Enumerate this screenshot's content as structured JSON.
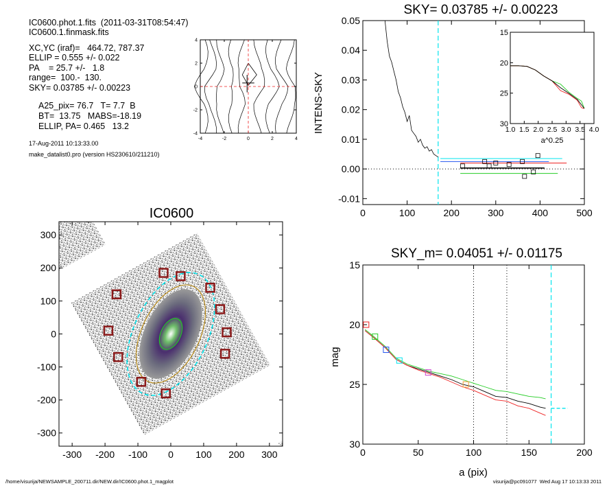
{
  "header": {
    "line1": "IC0600.phot.1.fits  (2011-03-31T08:54:47)",
    "line2": "IC0600.1.finmask.fits"
  },
  "params": {
    "xc": "XC,YC (iraf)=   464.72, 787.37",
    "ellip": "ELLIP = 0.555 +/- 0.022",
    "pa": "PA    = 25.7 +/-   1.8",
    "range": "range=  100.-  130.",
    "sky": "SKY= 0.03785 +/- 0.00223"
  },
  "params2": {
    "a25": "A25_pix= 76.7   T= 7.7  B",
    "bt": "BT=  13.75   MABS=-18.19",
    "ellip_pa": "ELLIP, PA= 0.465   13.2"
  },
  "meta": {
    "date": "17-Aug-2011 10:13:33.00",
    "program": "make_datalist0.pro (version HS230610/211210)"
  },
  "footer": {
    "path": "/home/visurija/NEWSAMPLE_200711.dir/NEW.dir/IC0600.phot.1_magplot",
    "user": "visurija@pc091077  Wed Aug 17 10:13:33 2011"
  },
  "colors": {
    "cyan": "#00e5ee",
    "red": "#ee2222",
    "green": "#22cc22",
    "blue": "#2255ee",
    "magenta": "#cc44cc",
    "orange": "#ee9933",
    "darkred": "#8b1a1a",
    "olive": "#b8860b"
  },
  "chart_data": [
    {
      "type": "line",
      "panel": "small-contour",
      "xlim": [
        -4,
        4
      ],
      "ylim": [
        -4,
        4
      ],
      "xticks": [
        -4,
        -2,
        0,
        2,
        4
      ],
      "yticks": [
        -4,
        -2,
        0,
        2,
        4
      ]
    },
    {
      "type": "line",
      "panel": "sky-profile",
      "title": "SKY= 0.03785 +/- 0.00223",
      "ylabel": "INTENS-SKY",
      "xlim": [
        0,
        500
      ],
      "ylim": [
        -0.012,
        0.05
      ],
      "xticks": [
        0,
        100,
        200,
        300,
        400,
        500
      ],
      "yticks": [
        -0.01,
        0.0,
        0.01,
        0.02,
        0.03,
        0.04,
        0.05
      ],
      "ytick_labels": [
        "-0.01",
        "0.00",
        "0.01",
        "0.02",
        "0.03",
        "0.04",
        "0.05"
      ],
      "sky_vline": 170,
      "profile": [
        [
          50,
          0.05
        ],
        [
          55,
          0.043
        ],
        [
          60,
          0.038
        ],
        [
          65,
          0.036
        ],
        [
          70,
          0.033
        ],
        [
          75,
          0.03
        ],
        [
          80,
          0.026
        ],
        [
          85,
          0.024
        ],
        [
          90,
          0.021
        ],
        [
          95,
          0.019
        ],
        [
          100,
          0.016
        ],
        [
          105,
          0.018
        ],
        [
          110,
          0.013
        ],
        [
          115,
          0.012
        ],
        [
          120,
          0.011
        ],
        [
          125,
          0.009
        ],
        [
          130,
          0.01
        ],
        [
          135,
          0.008
        ],
        [
          140,
          0.007
        ],
        [
          145,
          0.0075
        ],
        [
          150,
          0.006
        ],
        [
          155,
          0.0065
        ],
        [
          160,
          0.005
        ],
        [
          165,
          0.0045
        ],
        [
          170,
          0.004
        ]
      ],
      "sky_levels": [
        {
          "name": "black",
          "x": [
            220,
            410
          ],
          "y": 0.0003
        },
        {
          "name": "green",
          "x": [
            220,
            440
          ],
          "y": -0.0015
        },
        {
          "name": "blue",
          "x": [
            175,
            420
          ],
          "y": 0.0025
        },
        {
          "name": "cyan",
          "x": [
            175,
            450
          ],
          "y": 0.0035
        },
        {
          "name": "red",
          "x": [
            220,
            460
          ],
          "y": 0.002
        }
      ],
      "squares": [
        [
          225,
          0.001
        ],
        [
          275,
          0.0025
        ],
        [
          285,
          0.001
        ],
        [
          300,
          0.002
        ],
        [
          330,
          0.0015
        ],
        [
          360,
          0.0025
        ],
        [
          365,
          -0.0025
        ],
        [
          385,
          -0.001
        ],
        [
          395,
          0.0045
        ]
      ],
      "inset": {
        "xlabel": "a^0.25",
        "xlim": [
          1.0,
          4.0
        ],
        "ylim": [
          15,
          30
        ],
        "xticks": [
          1.0,
          1.5,
          2.0,
          2.5,
          3.0,
          3.5,
          4.0
        ],
        "xtick_labels": [
          "1.0",
          "1.5",
          "2.0",
          "2.5",
          "3.0",
          "3.5",
          "4.0"
        ],
        "yticks": [
          15,
          20,
          25,
          30
        ],
        "curve": [
          [
            1.0,
            20.5
          ],
          [
            1.3,
            20.5
          ],
          [
            1.6,
            20.6
          ],
          [
            1.9,
            21.2
          ],
          [
            2.2,
            22.2
          ],
          [
            2.5,
            23.0
          ],
          [
            2.8,
            24.0
          ],
          [
            3.1,
            25.0
          ],
          [
            3.4,
            26.0
          ],
          [
            3.55,
            26.8
          ],
          [
            3.65,
            27.5
          ]
        ]
      }
    },
    {
      "type": "heatmap",
      "panel": "galaxy-image",
      "title": "IC0600",
      "xlim": [
        -340,
        340
      ],
      "ylim": [
        -340,
        340
      ],
      "xticks": [
        -300,
        -200,
        -100,
        0,
        100,
        200,
        300
      ],
      "yticks": [
        -300,
        -200,
        -100,
        0,
        100,
        200,
        300
      ],
      "mask_boxes": [
        [
          -22,
          185
        ],
        [
          30,
          175
        ],
        [
          -165,
          120
        ],
        [
          -190,
          10
        ],
        [
          -160,
          -70
        ],
        [
          -90,
          -145
        ],
        [
          -15,
          -180
        ],
        [
          120,
          140
        ],
        [
          150,
          75
        ],
        [
          170,
          5
        ],
        [
          165,
          -60
        ]
      ],
      "ellipses": [
        {
          "name": "cyan-outer",
          "a": 200,
          "b": 112,
          "pa": 25.7,
          "color": "#00e5ee"
        },
        {
          "name": "olive",
          "a": 160,
          "b": 88,
          "pa": 25.7,
          "color": "#b8860b"
        },
        {
          "name": "inner",
          "a": 50,
          "b": 30,
          "pa": 25.7,
          "color": "#22cc22"
        }
      ]
    },
    {
      "type": "line",
      "panel": "magnitude-profile",
      "title": "SKY_m=  0.04051 +/- 0.01175",
      "xlabel": "a (pix)",
      "ylabel": "mag",
      "xlim": [
        0,
        200
      ],
      "ylim": [
        30,
        15
      ],
      "xticks": [
        0,
        50,
        100,
        150,
        200
      ],
      "yticks": [
        15,
        20,
        25,
        30
      ],
      "vlines_dotted": [
        100,
        130
      ],
      "sky_vline": 170,
      "sky_mark": {
        "x": [
          170,
          185
        ],
        "y": 27.0
      },
      "series": [
        {
          "name": "black",
          "values": [
            [
              2,
              20.5
            ],
            [
              10,
              21.1
            ],
            [
              20,
              21.9
            ],
            [
              30,
              22.9
            ],
            [
              40,
              23.4
            ],
            [
              50,
              23.7
            ],
            [
              60,
              24.0
            ],
            [
              70,
              24.3
            ],
            [
              80,
              24.6
            ],
            [
              90,
              25.0
            ],
            [
              100,
              25.2
            ],
            [
              110,
              25.6
            ],
            [
              120,
              26.0
            ],
            [
              130,
              26.1
            ],
            [
              140,
              26.4
            ],
            [
              150,
              26.6
            ],
            [
              160,
              26.9
            ],
            [
              165,
              27.0
            ]
          ]
        },
        {
          "name": "green",
          "values": [
            [
              2,
              20.4
            ],
            [
              10,
              21.0
            ],
            [
              20,
              21.8
            ],
            [
              30,
              22.8
            ],
            [
              40,
              23.3
            ],
            [
              50,
              23.6
            ],
            [
              60,
              23.9
            ],
            [
              70,
              24.1
            ],
            [
              80,
              24.3
            ],
            [
              90,
              24.6
            ],
            [
              100,
              24.9
            ],
            [
              110,
              25.2
            ],
            [
              120,
              25.5
            ],
            [
              130,
              25.6
            ],
            [
              140,
              25.8
            ],
            [
              150,
              26.0
            ],
            [
              160,
              26.1
            ],
            [
              165,
              26.2
            ]
          ]
        },
        {
          "name": "red",
          "values": [
            [
              2,
              20.5
            ],
            [
              10,
              21.1
            ],
            [
              20,
              21.9
            ],
            [
              30,
              22.9
            ],
            [
              40,
              23.4
            ],
            [
              50,
              23.8
            ],
            [
              60,
              24.1
            ],
            [
              70,
              24.4
            ],
            [
              80,
              24.8
            ],
            [
              90,
              25.2
            ],
            [
              100,
              25.5
            ],
            [
              110,
              25.9
            ],
            [
              120,
              26.3
            ],
            [
              130,
              26.4
            ],
            [
              140,
              26.8
            ],
            [
              150,
              27.0
            ],
            [
              160,
              27.4
            ],
            [
              165,
              27.6
            ]
          ]
        }
      ],
      "squares": [
        {
          "x": 3,
          "y": 20.0,
          "color": "#ee2222"
        },
        {
          "x": 11,
          "y": 21.0,
          "color": "#22cc22"
        },
        {
          "x": 21,
          "y": 22.1,
          "color": "#2255ee"
        },
        {
          "x": 33,
          "y": 23.0,
          "color": "#00e5ee"
        },
        {
          "x": 59,
          "y": 24.0,
          "color": "#cc44cc"
        },
        {
          "x": 93,
          "y": 25.0,
          "color": "#ee9933"
        }
      ]
    }
  ]
}
